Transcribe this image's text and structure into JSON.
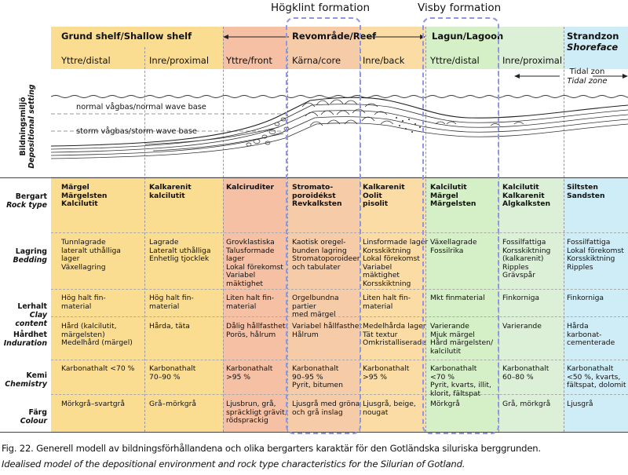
{
  "formations": [
    "Högklint formation",
    "Visby formation"
  ],
  "zones": {
    "shelf": "Grund shelf/Shallow shelf",
    "reef": "Revområde/Reef",
    "lagoon": "Lagun/Lagoon",
    "shoreface": [
      "Strandzon",
      "Shoreface"
    ]
  },
  "subzones": [
    "Yttre/distal",
    "Inre/proximal",
    "Yttre/front",
    "Kärna/core",
    "Inre/back",
    "Yttre/distal",
    "Inre/proximal"
  ],
  "setting": {
    "label_sv": "Bildningsmiljö",
    "label_en": "Depositional setting",
    "normal_wave_base": "normal vågbas/normal wave base",
    "storm_wave_base": "storm vågbas/storm wave base",
    "tidal_zone_sv": "Tidal zon",
    "tidal_zone_en": "Tidal zone"
  },
  "row_labels": [
    [
      "Bergart",
      "Rock type"
    ],
    [
      "Lagring",
      "Bedding"
    ],
    [
      "Lerhalt",
      "Clay content"
    ],
    [
      "Hårdhet",
      "Induration"
    ],
    [
      "Kemi",
      "Chemistry"
    ],
    [
      "Färg",
      "Colour"
    ]
  ],
  "rock_types": [
    "Märgel\nMärgelsten\nKalcilutit",
    "Kalkarenit\nkalcilutit",
    "Kalciruditer",
    "Stromato-\nporoidékst\nRevkalksten",
    "Kalkarenit\nOolit\npisolit",
    "Kalcilutit\nMärgel\nMärgelsten",
    "Kalcilutit\nKalkarenit\nAlgkalksten",
    "Siltsten\nSandsten"
  ],
  "bedding": [
    "Tunnlagrade\nlateralt uthålliga\nlager\nVäxellagring",
    "Lagrade\nLateralt uthålliga\nEnhetlig tjocklek",
    "Grovklastiska\nTalusformade\nlager\nLokal förekomst\nVariabel\nmäktighet",
    "Kaotisk oregel-\nbunden lagring\nStromatoporoideer\noch tabulater",
    "Linsformade lager\nKorsskiktning\nLokal förekomst\nVariabel\nmäktighet\nKorsskiktning",
    "Växellagrade\nFossilrika",
    "Fossilfattiga\nKorsskiktning\n(kalkarenit)\nRipples\nGrävspår",
    "Fossilfattiga\nLokal förekomst\nKorsskiktning\nRipples"
  ],
  "clay": [
    "Hög halt fin-\nmaterial",
    "Hög halt fin-\nmaterial",
    "Liten halt fin-\nmaterial",
    "Orgelbundna\npartier\nmed märgel",
    "Liten halt fin-\nmaterial",
    "Mkt finmaterial",
    "Finkorniga",
    "Finkorniga"
  ],
  "induration": [
    "Hård (kalcilutit,\nmärgelsten)\nMedelhård (märgel)",
    "Hårda, täta",
    "Dålig hållfasthet\nPorös, hålrum",
    "Variabel hållfasthet\nHålrum",
    "Medelhårda lager\nTät textur\nOmkristalliserade",
    "Varierande\nMjuk märgel\nHård märgelsten/\nkalcilutit",
    "Varierande",
    "Hårda\nkarbonat-\ncementerade"
  ],
  "chemistry": [
    "Karbonathalt <70 %",
    "Karbonathalt\n70–90 %",
    "Karbonathalt\n>95 %",
    "Karbonathalt\n90–95 %\nPyrit, bitumen",
    "Karbonathalt\n>95 %",
    "Karbonathalt\n<70 %\nPyrit, kvarts, illit,\nklorit, fältspat",
    "Karbonathalt\n60–80 %",
    "Karbonathalt\n<50 %, kvarts,\nfältspat, dolomit"
  ],
  "colour": [
    "Mörkgrå–svartgrå",
    "Grå–mörkgrå",
    "Ljusbrun, grå,\nspräckligt grävit,\nrödsprackig",
    "Ljusgrå med gröna\noch grå inslag",
    "Ljusgrå, beige,\nnougat",
    "Mörkgrå",
    "Grå, mörkgrå",
    "Ljusgrå"
  ],
  "caption_sv": "Fig. 22. Generell modell av bildningsförhållandena och olika bergarters karaktär för den Gotländska siluriska berggrunden.",
  "caption_en": "Idealised model of the depositional environment and rock type characteristics for the Silurian of Gotland.",
  "colors": {
    "shelf": "#fbdd92",
    "front": "#f5c0a4",
    "core": "#f6cba8",
    "back": "#fbdca4",
    "lagoon_distal": "#d5efc6",
    "lagoon_proximal": "#dcf0d8",
    "shoreface": "#cfedf6",
    "formation_box": "#8e96e6"
  }
}
